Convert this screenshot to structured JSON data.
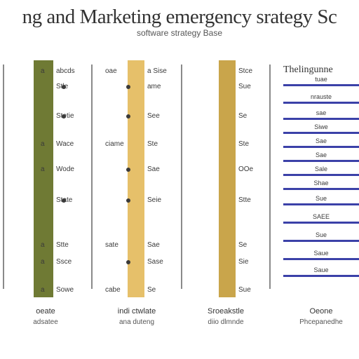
{
  "header": {
    "title": "ng and Marketing emergency srategy Sc",
    "subtitle": "software strategy Base"
  },
  "colors": {
    "bar_olive": "#6f7a34",
    "bar_gold": "#e6c06a",
    "bar_tan": "#c9a54b",
    "divider": "#8a8a8a",
    "rule_blue": "#3b41a8"
  },
  "columns": [
    {
      "cells": [
        "abcds",
        "Stle",
        "Stetie",
        "Wace",
        "Wode",
        "State",
        "Stte",
        "Ssce",
        "Sowe"
      ],
      "left_marks": [
        "a",
        "",
        "",
        "a",
        "a",
        "",
        "a",
        "a",
        "a"
      ],
      "footer": [
        "oeate",
        "adsatee"
      ]
    },
    {
      "cells": [
        "a Sise",
        "ame",
        "See",
        "Ste",
        "Sae",
        "Seie",
        "Sae",
        "Sase",
        "Se"
      ],
      "left_marks": [
        "oae",
        "",
        "",
        "ciame",
        "",
        "",
        "sate",
        "",
        "cabe"
      ],
      "footer": [
        "indi ctwlate",
        "ana duteng"
      ]
    },
    {
      "cells": [
        "Stce",
        "Sue",
        "Se",
        "Ste",
        "OOe",
        "Stte",
        "Se",
        "Sie",
        "Sue"
      ],
      "left_marks": [
        "",
        "",
        "",
        "",
        "",
        "",
        "",
        "",
        ""
      ],
      "footer": [
        "Sroeakstle",
        "diio dlmnde"
      ]
    }
  ],
  "right_panel": {
    "heading": "Thelingunne",
    "rows": [
      "tuae",
      "nrauste",
      "sae",
      "Siwe",
      "Sae",
      "Sae",
      "Sale",
      "Shae",
      "Sue",
      "SAEE",
      "Sue",
      "Saue",
      "Saue"
    ],
    "footer": [
      "Oeone",
      "Phcepanedhe"
    ]
  }
}
